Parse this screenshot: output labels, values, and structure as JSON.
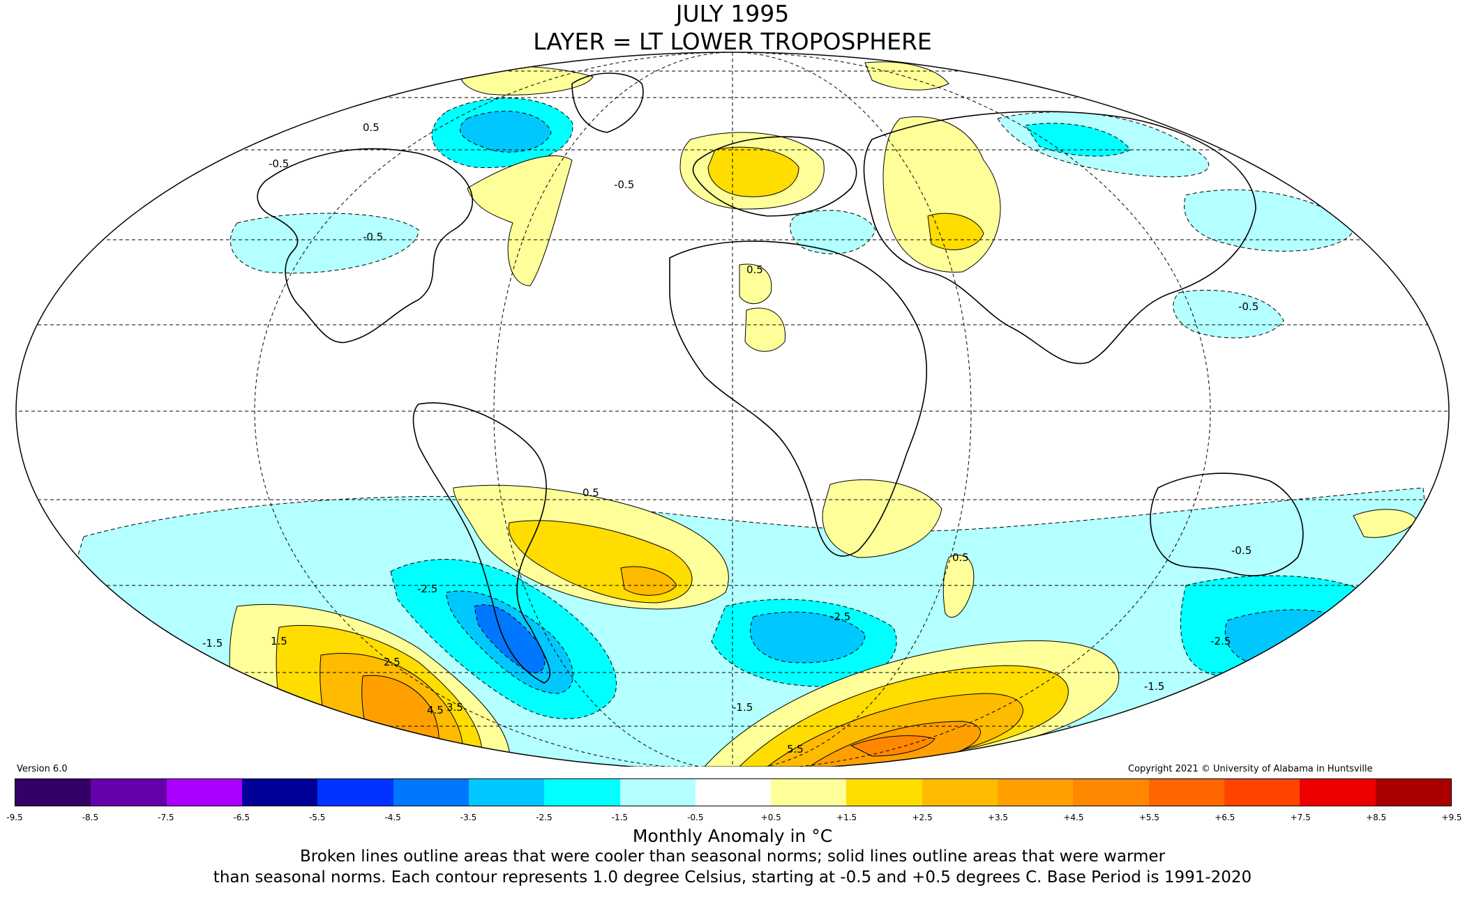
{
  "title": {
    "line1": "JULY 1995",
    "line2": "LAYER = LT LOWER TROPOSPHERE"
  },
  "version": "Version 6.0",
  "copyright": "Copyright 2021 © University of Alabama in Huntsville",
  "colorbar": {
    "ticks": [
      "-9.5",
      "-8.5",
      "-7.5",
      "-6.5",
      "-5.5",
      "-4.5",
      "-3.5",
      "-2.5",
      "-1.5",
      "-0.5",
      "+0.5",
      "+1.5",
      "+2.5",
      "+3.5",
      "+4.5",
      "+5.5",
      "+6.5",
      "+7.5",
      "+8.5",
      "+9.5"
    ],
    "colors": [
      "#330066",
      "#6600aa",
      "#aa00ff",
      "#000099",
      "#0033ff",
      "#0077ff",
      "#00c8ff",
      "#00ffff",
      "#b4ffff",
      "#ffffff",
      "#ffff99",
      "#ffdd00",
      "#ffbb00",
      "#ffa000",
      "#ff8800",
      "#ff6600",
      "#ff4400",
      "#ee0000",
      "#aa0000"
    ],
    "units": "Monthly Anomaly in °C"
  },
  "caption": {
    "line1": "Broken lines outline areas that were cooler than seasonal norms; solid lines outline areas that were warmer",
    "line2": "than seasonal norms. Each contour represents 1.0 degree Celsius, starting at -0.5 and +0.5 degrees C. Base Period is 1991-2020"
  },
  "contour_labels": {
    "a1": "0.5",
    "a2": "-0.5",
    "a3": "-1.5",
    "a4": "1.5",
    "a5": "2.5",
    "a6": "-2.5",
    "a7": "3.5",
    "a8": "4.5",
    "a9": "5.5",
    "a10": "-0.5",
    "a11": "0.5",
    "a12": "-0.5",
    "a13": "-2.5",
    "a14": "-1.5",
    "a15": "-0.5",
    "a16": "0.5",
    "a17": "-1.5",
    "a18": "-0.5",
    "a19": "-2.5",
    "a20": "0.5"
  },
  "colors": {
    "cool1": "#b4ffff",
    "cool2": "#00ffff",
    "cool3": "#00c8ff",
    "cool4": "#0077ff",
    "warm1": "#ffff99",
    "warm2": "#ffdd00",
    "warm3": "#ffbb00",
    "warm4": "#ffa000",
    "warm5": "#ff8800"
  }
}
